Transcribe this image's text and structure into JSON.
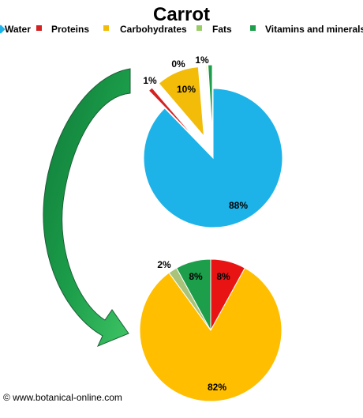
{
  "title": "Carrot",
  "credit": "© www.botanical-online.com",
  "legend": [
    {
      "label": "Water",
      "color": "#1DB2E8",
      "icon": "diamond-marker-icon"
    },
    {
      "label": "Proteins",
      "color": "#D42222",
      "icon": "square-marker-icon"
    },
    {
      "label": "Carbohydrates",
      "color": "#F2BC08",
      "icon": "square-marker-icon"
    },
    {
      "label": "Fats",
      "color": "#9ACD68",
      "icon": "square-marker-icon"
    },
    {
      "label": "Vitamins and minerals",
      "color": "#1C9E4A",
      "icon": "square-marker-icon"
    }
  ],
  "arrow": {
    "icon": "curved-arrow-icon",
    "color": "#1C9E4A"
  },
  "chart_data": [
    {
      "type": "pie",
      "title": "",
      "exploded_slices": [
        "Proteins",
        "Carbohydrates",
        "Fats",
        "Vitamins and minerals"
      ],
      "slices": [
        {
          "name": "Water",
          "value": 88,
          "label": "88%",
          "color": "#1DB2E8"
        },
        {
          "name": "Proteins",
          "value": 1,
          "label": "1%",
          "color": "#D42222"
        },
        {
          "name": "Carbohydrates",
          "value": 10,
          "label": "10%",
          "color": "#F2BC08"
        },
        {
          "name": "Fats",
          "value": 0.3,
          "label": "0%",
          "color": "#F5EBB0"
        },
        {
          "name": "Vitamins and minerals",
          "value": 1,
          "label": "1%",
          "color": "#1C9E4A"
        }
      ]
    },
    {
      "type": "pie",
      "title": "",
      "slices": [
        {
          "name": "Proteins",
          "value": 8,
          "label": "8%",
          "color": "#E81414"
        },
        {
          "name": "Carbohydrates",
          "value": 82,
          "label": "82%",
          "color": "#FFBE00"
        },
        {
          "name": "Fats",
          "value": 2,
          "label": "2%",
          "color": "#A9C47A"
        },
        {
          "name": "Vitamins and minerals",
          "value": 8,
          "label": "8%",
          "color": "#1C9E4A"
        }
      ]
    }
  ]
}
